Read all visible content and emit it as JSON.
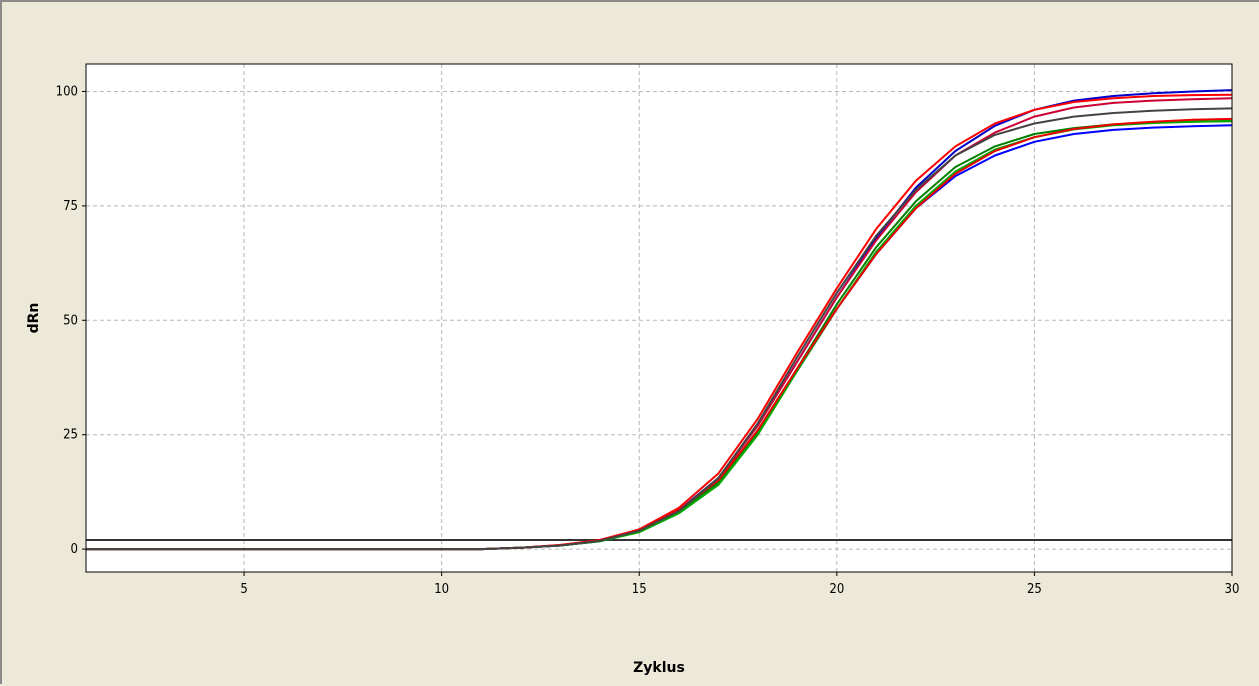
{
  "chart_data": {
    "type": "line",
    "title": "",
    "xlabel": "Zyklus",
    "ylabel": "dRn",
    "xlim": [
      1,
      30
    ],
    "ylim": [
      -5,
      106
    ],
    "x_ticks": [
      5,
      10,
      15,
      20,
      25,
      30
    ],
    "y_ticks": [
      0,
      25,
      50,
      75,
      100
    ],
    "x_tick_labels": [
      "5",
      "10",
      "15",
      "20",
      "25",
      "30"
    ],
    "y_tick_labels": [
      "0",
      "25",
      "50",
      "75",
      "100"
    ],
    "grid": true,
    "legend": "none",
    "threshold": 2.0,
    "x": [
      1,
      2,
      3,
      4,
      5,
      6,
      7,
      8,
      9,
      10,
      11,
      12,
      13,
      14,
      15,
      16,
      17,
      18,
      19,
      20,
      21,
      22,
      23,
      24,
      25,
      26,
      27,
      28,
      29,
      30
    ],
    "series": [
      {
        "color": "#0000cc",
        "values": [
          0,
          0,
          0,
          0,
          0,
          0,
          0,
          0,
          0,
          0,
          0,
          0.3,
          0.8,
          1.8,
          4,
          8.5,
          15.5,
          27,
          41,
          55,
          68,
          79,
          87,
          92.5,
          96,
          98,
          99,
          99.6,
          100,
          100.3
        ]
      },
      {
        "color": "#ff0000",
        "values": [
          0,
          0,
          0,
          0,
          0,
          0,
          0,
          0,
          0,
          0,
          0,
          0.3,
          0.9,
          2,
          4.3,
          9,
          16.5,
          28.5,
          43,
          57,
          70,
          80.5,
          88,
          93,
          96,
          97.7,
          98.5,
          99,
          99.2,
          99.3
        ]
      },
      {
        "color": "#cc0033",
        "values": [
          0,
          0,
          0,
          0,
          0,
          0,
          0,
          0,
          0,
          0,
          0,
          0.3,
          0.8,
          1.8,
          4,
          8.3,
          15.5,
          27,
          41,
          55,
          67.5,
          78,
          86,
          91,
          94.5,
          96.5,
          97.5,
          98,
          98.3,
          98.5
        ]
      },
      {
        "color": "#0000ff",
        "values": [
          0,
          0,
          0,
          0,
          0,
          0,
          0,
          0,
          0,
          0,
          0,
          0.3,
          0.8,
          1.7,
          3.8,
          8,
          14.5,
          25.5,
          39,
          52.5,
          64.5,
          74.5,
          81.5,
          86,
          89,
          90.7,
          91.6,
          92.1,
          92.4,
          92.6
        ]
      },
      {
        "color": "#008000",
        "values": [
          0,
          0,
          0,
          0,
          0,
          0,
          0,
          0,
          0,
          0,
          0,
          0.3,
          0.8,
          1.7,
          3.8,
          8,
          14.5,
          25.5,
          39.5,
          53.5,
          66,
          76,
          83.5,
          88,
          90.7,
          92,
          92.8,
          93.2,
          93.4,
          93.5
        ]
      },
      {
        "color": "#00aa00",
        "values": [
          0,
          0,
          0,
          0,
          0,
          0,
          0,
          0,
          0,
          0,
          0,
          0.3,
          0.8,
          1.7,
          3.7,
          7.8,
          14,
          25,
          39,
          52.5,
          65,
          75,
          82.5,
          87.3,
          90,
          91.7,
          92.6,
          93.1,
          93.4,
          93.6
        ]
      },
      {
        "color": "#ee0000",
        "values": [
          0,
          0,
          0,
          0,
          0,
          0,
          0,
          0,
          0,
          0,
          0,
          0.3,
          0.9,
          1.9,
          4.2,
          8.6,
          15,
          26,
          39.5,
          52.5,
          64.5,
          74.5,
          82,
          87,
          90,
          91.8,
          92.8,
          93.4,
          93.8,
          94
        ]
      },
      {
        "color": "#444444",
        "values": [
          0,
          0,
          0,
          0,
          0,
          0,
          0,
          0,
          0,
          0,
          0,
          0.3,
          0.8,
          1.8,
          4,
          8.3,
          15.5,
          27.5,
          42,
          56,
          68.5,
          78.5,
          86,
          90.5,
          93,
          94.5,
          95.3,
          95.8,
          96.1,
          96.3
        ]
      }
    ]
  }
}
